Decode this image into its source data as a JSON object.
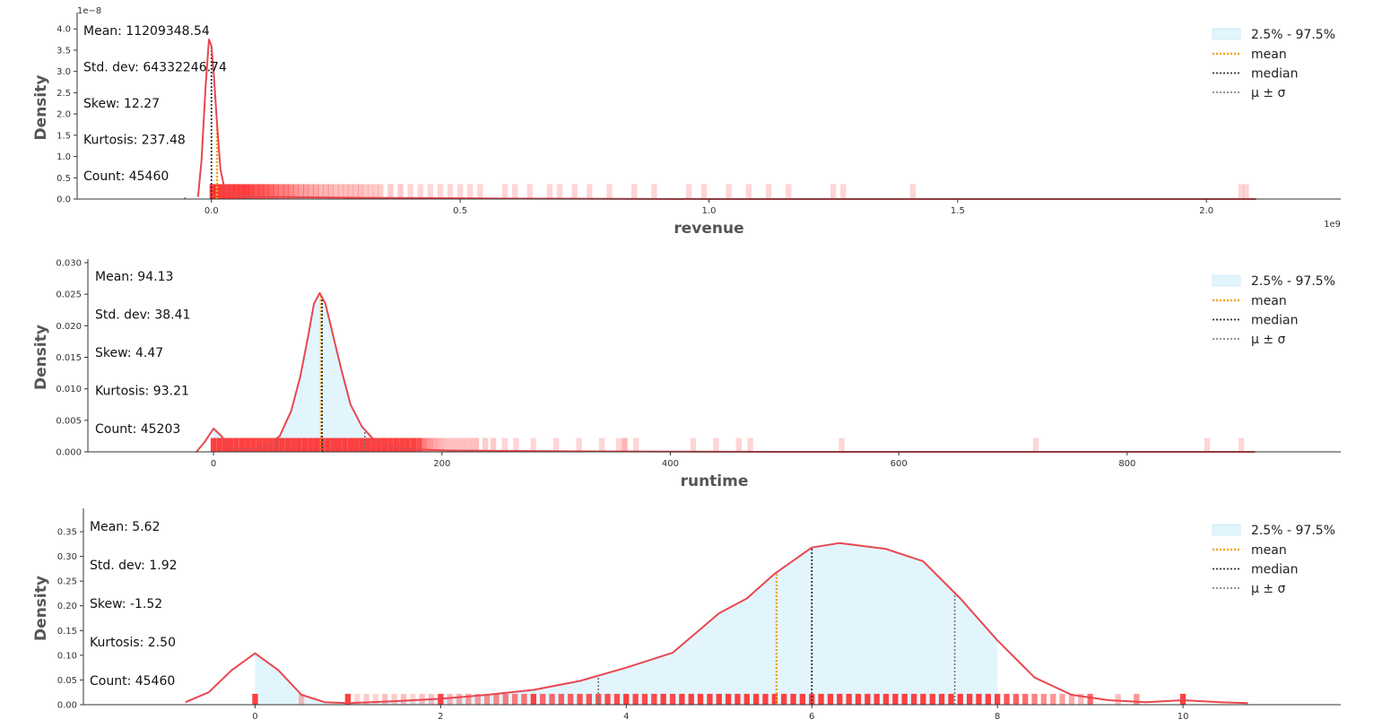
{
  "legend": {
    "ci_label": "2.5% - 97.5%",
    "mean_label": "mean",
    "median_label": "median",
    "sigma_label": "μ ± σ"
  },
  "colors": {
    "kde": "#e8474f",
    "rug": "#ff2b2b",
    "ci_fill": "#e2f5fd",
    "mean": "#f4a31b",
    "median": "#333333",
    "sigma": "#707070",
    "axis": "#333333"
  },
  "chart_data": [
    {
      "type": "density",
      "xlabel": "revenue",
      "ylabel": "Density",
      "x_exponent_label": "1e9",
      "y_exponent_label": "1e−8",
      "xlim": [
        -0.27,
        2.27
      ],
      "ylim": [
        0,
        4.3
      ],
      "x_ticks": [
        0.0,
        0.5,
        1.0,
        1.5,
        2.0
      ],
      "x_tick_labels": [
        "0.0",
        "0.5",
        "1.0",
        "1.5",
        "2.0"
      ],
      "y_ticks": [
        0.0,
        0.5,
        1.0,
        1.5,
        2.0,
        2.5,
        3.0,
        3.5,
        4.0
      ],
      "y_tick_labels": [
        "0.0",
        "0.5",
        "1.0",
        "1.5",
        "2.0",
        "2.5",
        "3.0",
        "3.5",
        "4.0"
      ],
      "stats": {
        "mean": "Mean: 11209348.54",
        "std": "Std. dev: 64332246.74",
        "skew": "Skew: 12.27",
        "kurtosis": "Kurtosis: 237.48",
        "count": "Count: 45460"
      },
      "mean": 0.0112,
      "median": 0.0,
      "sigma_low": -0.053,
      "sigma_high": 0.0755,
      "ci": [
        0.0,
        0.0
      ],
      "rug_height": 0.35,
      "kde": [
        [
          -0.027,
          0.05
        ],
        [
          -0.02,
          0.9
        ],
        [
          -0.012,
          2.6
        ],
        [
          -0.005,
          3.75
        ],
        [
          0.0,
          3.6
        ],
        [
          0.005,
          2.9
        ],
        [
          0.011,
          1.8
        ],
        [
          0.018,
          0.7
        ],
        [
          0.027,
          0.2
        ],
        [
          0.05,
          0.08
        ],
        [
          0.1,
          0.05
        ],
        [
          0.3,
          0.03
        ],
        [
          0.6,
          0.01
        ],
        [
          1.0,
          0.0
        ],
        [
          2.1,
          0.0
        ]
      ],
      "rug": [
        0.002,
        0.01,
        0.02,
        0.03,
        0.04,
        0.05,
        0.06,
        0.07,
        0.08,
        0.09,
        0.1,
        0.11,
        0.12,
        0.13,
        0.14,
        0.15,
        0.16,
        0.17,
        0.18,
        0.19,
        0.2,
        0.21,
        0.22,
        0.23,
        0.24,
        0.25,
        0.26,
        0.27,
        0.28,
        0.29,
        0.3,
        0.31,
        0.32,
        0.33,
        0.34,
        0.36,
        0.38,
        0.4,
        0.42,
        0.44,
        0.46,
        0.48,
        0.5,
        0.52,
        0.54,
        0.59,
        0.61,
        0.64,
        0.68,
        0.7,
        0.73,
        0.76,
        0.8,
        0.85,
        0.89,
        0.96,
        0.99,
        1.04,
        1.08,
        1.12,
        1.16,
        1.25,
        1.27,
        1.41,
        2.07,
        2.08
      ],
      "rug_alpha": [
        0.9,
        0.9,
        0.9,
        0.9,
        0.9,
        0.9,
        0.9,
        0.9,
        0.85,
        0.8,
        0.8,
        0.75,
        0.7,
        0.65,
        0.6,
        0.6,
        0.55,
        0.5,
        0.45,
        0.45,
        0.4,
        0.4,
        0.35,
        0.35,
        0.35,
        0.3,
        0.3,
        0.3,
        0.3,
        0.3,
        0.3,
        0.25,
        0.25,
        0.25,
        0.25,
        0.25,
        0.25,
        0.2,
        0.2,
        0.2,
        0.2,
        0.2,
        0.2,
        0.2,
        0.2,
        0.2,
        0.2,
        0.2,
        0.2,
        0.2,
        0.2,
        0.2,
        0.2,
        0.2,
        0.2,
        0.2,
        0.2,
        0.2,
        0.2,
        0.2,
        0.2,
        0.2,
        0.2,
        0.2,
        0.2,
        0.2
      ]
    },
    {
      "type": "density",
      "xlabel": "runtime",
      "ylabel": "Density",
      "x_exponent_label": "",
      "y_exponent_label": "",
      "xlim": [
        -110,
        987
      ],
      "ylim": [
        0,
        0.03
      ],
      "x_ticks": [
        0,
        200,
        400,
        600,
        800
      ],
      "x_tick_labels": [
        "0",
        "200",
        "400",
        "600",
        "800"
      ],
      "y_ticks": [
        0.0,
        0.005,
        0.01,
        0.015,
        0.02,
        0.025,
        0.03
      ],
      "y_tick_labels": [
        "0.000",
        "0.005",
        "0.010",
        "0.015",
        "0.020",
        "0.025",
        "0.030"
      ],
      "stats": {
        "mean": "Mean: 94.13",
        "std": "Std. dev: 38.41",
        "skew": "Skew: 4.47",
        "kurtosis": "Kurtosis: 93.21",
        "count": "Count: 45203"
      },
      "mean": 94.13,
      "median": 95,
      "sigma_low": 55.7,
      "sigma_high": 132.5,
      "ci": [
        0,
        183
      ],
      "rug_height": 0.0022,
      "kde": [
        [
          -15,
          0.0
        ],
        [
          -8,
          0.0015
        ],
        [
          0,
          0.0037
        ],
        [
          7,
          0.0025
        ],
        [
          14,
          0.0006
        ],
        [
          30,
          0.0004
        ],
        [
          45,
          0.0008
        ],
        [
          58,
          0.0025
        ],
        [
          68,
          0.0065
        ],
        [
          76,
          0.012
        ],
        [
          83,
          0.0185
        ],
        [
          88,
          0.0235
        ],
        [
          93,
          0.0252
        ],
        [
          98,
          0.0235
        ],
        [
          104,
          0.019
        ],
        [
          112,
          0.013
        ],
        [
          120,
          0.0075
        ],
        [
          130,
          0.004
        ],
        [
          140,
          0.002
        ],
        [
          155,
          0.0009
        ],
        [
          175,
          0.0004
        ],
        [
          210,
          0.0002
        ],
        [
          300,
          0.0001
        ],
        [
          500,
          0.0
        ],
        [
          912,
          0.0
        ]
      ],
      "rug": [
        0,
        5,
        10,
        15,
        20,
        25,
        30,
        35,
        40,
        45,
        50,
        55,
        60,
        65,
        70,
        75,
        80,
        85,
        90,
        95,
        100,
        105,
        110,
        115,
        120,
        125,
        130,
        135,
        140,
        145,
        150,
        155,
        160,
        165,
        170,
        175,
        180,
        185,
        190,
        195,
        200,
        205,
        210,
        215,
        220,
        225,
        230,
        238,
        245,
        255,
        265,
        280,
        300,
        320,
        340,
        355,
        360,
        370,
        420,
        440,
        460,
        470,
        550,
        720,
        870,
        900
      ],
      "rug_alpha": [
        0.9,
        0.9,
        0.9,
        0.9,
        0.9,
        0.9,
        0.9,
        0.9,
        0.9,
        0.9,
        0.9,
        0.9,
        0.9,
        0.9,
        0.9,
        0.9,
        0.9,
        0.9,
        0.9,
        0.9,
        0.9,
        0.9,
        0.9,
        0.9,
        0.9,
        0.9,
        0.9,
        0.9,
        0.9,
        0.9,
        0.9,
        0.9,
        0.9,
        0.9,
        0.9,
        0.9,
        0.85,
        0.6,
        0.5,
        0.4,
        0.35,
        0.3,
        0.3,
        0.3,
        0.3,
        0.3,
        0.3,
        0.25,
        0.25,
        0.2,
        0.2,
        0.2,
        0.2,
        0.2,
        0.2,
        0.2,
        0.35,
        0.2,
        0.2,
        0.2,
        0.2,
        0.2,
        0.2,
        0.2,
        0.2,
        0.2
      ]
    },
    {
      "type": "density",
      "xlabel": "",
      "ylabel": "Density",
      "x_exponent_label": "",
      "y_exponent_label": "",
      "xlim": [
        -1.85,
        11.7
      ],
      "ylim": [
        0,
        0.39
      ],
      "x_ticks": [
        0,
        2,
        4,
        6,
        8,
        10
      ],
      "x_tick_labels": [
        "0",
        "2",
        "4",
        "6",
        "8",
        "10"
      ],
      "y_ticks": [
        0.0,
        0.05,
        0.1,
        0.15,
        0.2,
        0.25,
        0.3,
        0.35
      ],
      "y_tick_labels": [
        "0.00",
        "0.05",
        "0.10",
        "0.15",
        "0.20",
        "0.25",
        "0.30",
        "0.35"
      ],
      "stats": {
        "mean": "Mean: 5.62",
        "std": "Std. dev: 1.92",
        "skew": "Skew: -1.52",
        "kurtosis": "Kurtosis: 2.50",
        "count": "Count: 45460"
      },
      "mean": 5.62,
      "median": 6.0,
      "sigma_low": 3.7,
      "sigma_high": 7.54,
      "ci": [
        0.0,
        8.0
      ],
      "rug_height": 0.022,
      "kde": [
        [
          -0.75,
          0.005
        ],
        [
          -0.5,
          0.025
        ],
        [
          -0.25,
          0.07
        ],
        [
          0.0,
          0.104
        ],
        [
          0.25,
          0.07
        ],
        [
          0.5,
          0.02
        ],
        [
          0.75,
          0.005
        ],
        [
          1.0,
          0.003
        ],
        [
          1.5,
          0.007
        ],
        [
          2.0,
          0.012
        ],
        [
          2.5,
          0.02
        ],
        [
          3.0,
          0.03
        ],
        [
          3.5,
          0.048
        ],
        [
          4.0,
          0.075
        ],
        [
          4.5,
          0.105
        ],
        [
          5.0,
          0.185
        ],
        [
          5.3,
          0.215
        ],
        [
          5.6,
          0.265
        ],
        [
          6.0,
          0.318
        ],
        [
          6.3,
          0.327
        ],
        [
          6.8,
          0.315
        ],
        [
          7.2,
          0.29
        ],
        [
          7.6,
          0.215
        ],
        [
          8.0,
          0.13
        ],
        [
          8.4,
          0.055
        ],
        [
          8.8,
          0.02
        ],
        [
          9.2,
          0.009
        ],
        [
          9.6,
          0.005
        ],
        [
          10.0,
          0.009
        ],
        [
          10.4,
          0.005
        ],
        [
          10.7,
          0.003
        ]
      ],
      "rug": [
        0,
        0.5,
        1.0,
        1.1,
        1.2,
        1.3,
        1.4,
        1.5,
        1.6,
        1.7,
        1.8,
        1.9,
        2.0,
        2.1,
        2.2,
        2.3,
        2.4,
        2.5,
        2.6,
        2.7,
        2.8,
        2.9,
        3.0,
        3.1,
        3.2,
        3.3,
        3.4,
        3.5,
        3.6,
        3.7,
        3.8,
        3.9,
        4.0,
        4.1,
        4.2,
        4.3,
        4.4,
        4.5,
        4.6,
        4.7,
        4.8,
        4.9,
        5.0,
        5.1,
        5.2,
        5.3,
        5.4,
        5.5,
        5.6,
        5.7,
        5.8,
        5.9,
        6.0,
        6.1,
        6.2,
        6.3,
        6.4,
        6.5,
        6.6,
        6.7,
        6.8,
        6.9,
        7.0,
        7.1,
        7.2,
        7.3,
        7.4,
        7.5,
        7.6,
        7.7,
        7.8,
        7.9,
        8.0,
        8.1,
        8.2,
        8.3,
        8.4,
        8.5,
        8.6,
        8.7,
        8.8,
        8.9,
        9.0,
        9.3,
        9.5,
        10.0
      ],
      "rug_alpha": [
        0.9,
        0.3,
        0.9,
        0.2,
        0.25,
        0.2,
        0.3,
        0.25,
        0.3,
        0.2,
        0.3,
        0.3,
        0.9,
        0.35,
        0.4,
        0.45,
        0.45,
        0.5,
        0.55,
        0.6,
        0.6,
        0.65,
        0.9,
        0.7,
        0.7,
        0.75,
        0.75,
        0.8,
        0.8,
        0.8,
        0.85,
        0.85,
        0.9,
        0.85,
        0.85,
        0.85,
        0.9,
        0.85,
        0.9,
        0.9,
        0.9,
        0.9,
        0.9,
        0.9,
        0.9,
        0.9,
        0.9,
        0.9,
        0.9,
        0.9,
        0.9,
        0.9,
        0.9,
        0.9,
        0.9,
        0.9,
        0.9,
        0.9,
        0.9,
        0.9,
        0.9,
        0.9,
        0.9,
        0.9,
        0.9,
        0.9,
        0.9,
        0.9,
        0.9,
        0.9,
        0.9,
        0.9,
        0.9,
        0.8,
        0.75,
        0.7,
        0.6,
        0.55,
        0.5,
        0.45,
        0.4,
        0.35,
        0.7,
        0.3,
        0.5,
        0.9
      ]
    }
  ]
}
